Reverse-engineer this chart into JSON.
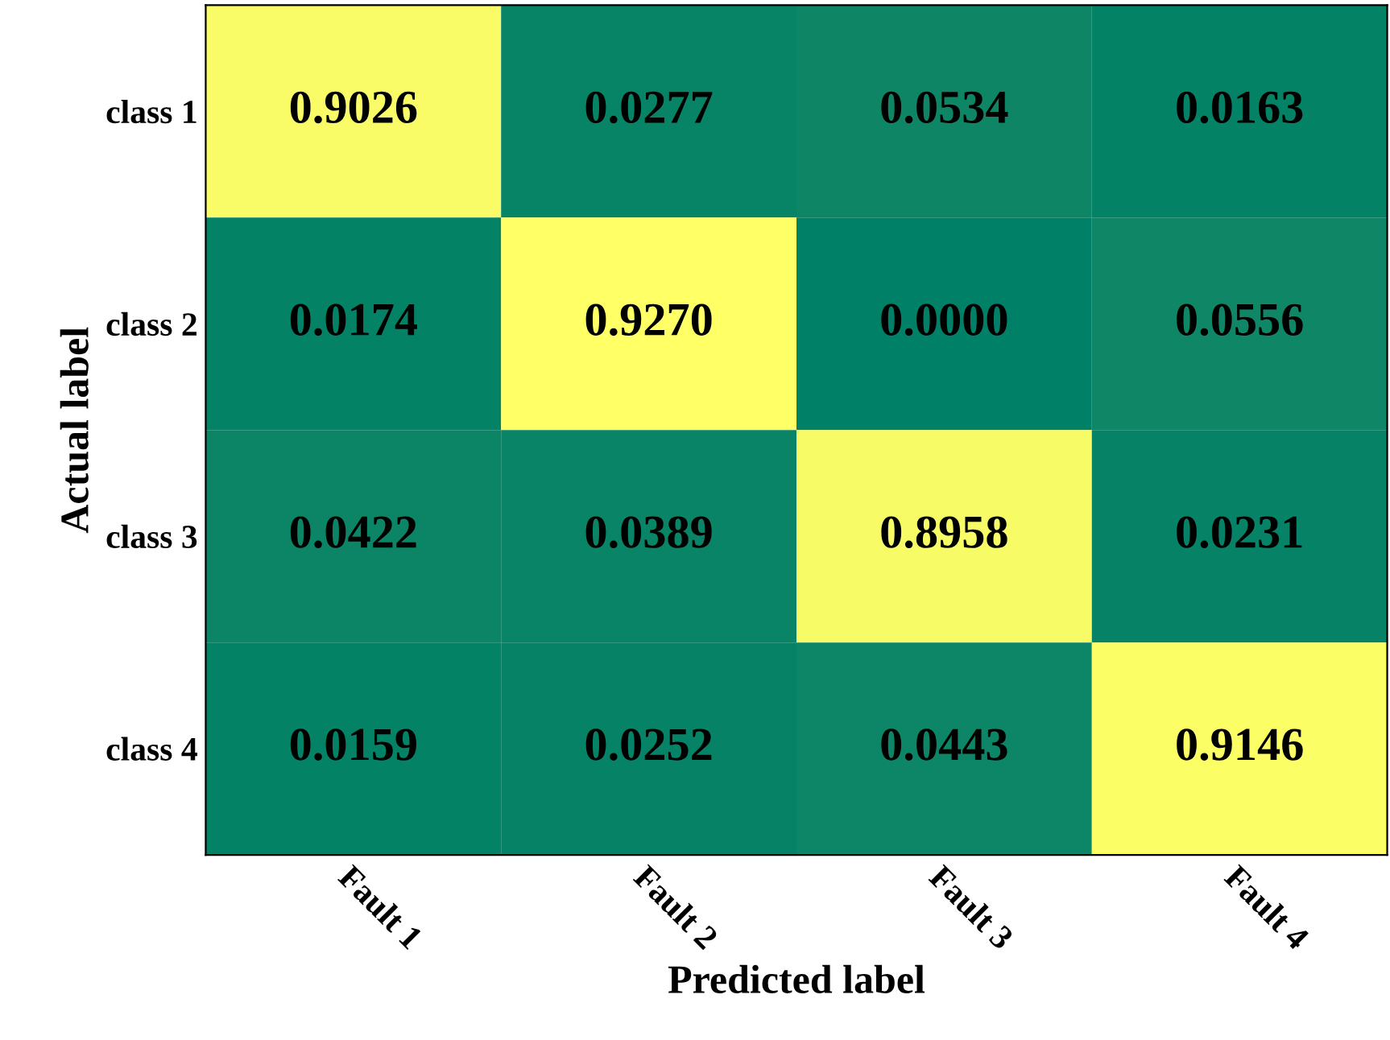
{
  "chart_data": {
    "type": "heatmap",
    "xlabel": "Predicted label",
    "ylabel": "Actual label",
    "categories": [
      "Fault 1",
      "Fault 2",
      "Fault 3",
      "Fault 4"
    ],
    "y_categories": [
      "class 1",
      "class 2",
      "class 3",
      "class 4"
    ],
    "cells": [
      [
        0.9026,
        0.0277,
        0.0534,
        0.0163
      ],
      [
        0.0174,
        0.927,
        0.0,
        0.0556
      ],
      [
        0.0422,
        0.0389,
        0.8958,
        0.0231
      ],
      [
        0.0159,
        0.0252,
        0.0443,
        0.9146
      ]
    ],
    "cell_labels": [
      [
        "0.9026",
        "0.0277",
        "0.0534",
        "0.0163"
      ],
      [
        "0.0174",
        "0.9270",
        "0.0000",
        "0.0556"
      ],
      [
        "0.0422",
        "0.0389",
        "0.8958",
        "0.0231"
      ],
      [
        "0.0159",
        "0.0252",
        "0.0443",
        "0.9146"
      ]
    ]
  }
}
